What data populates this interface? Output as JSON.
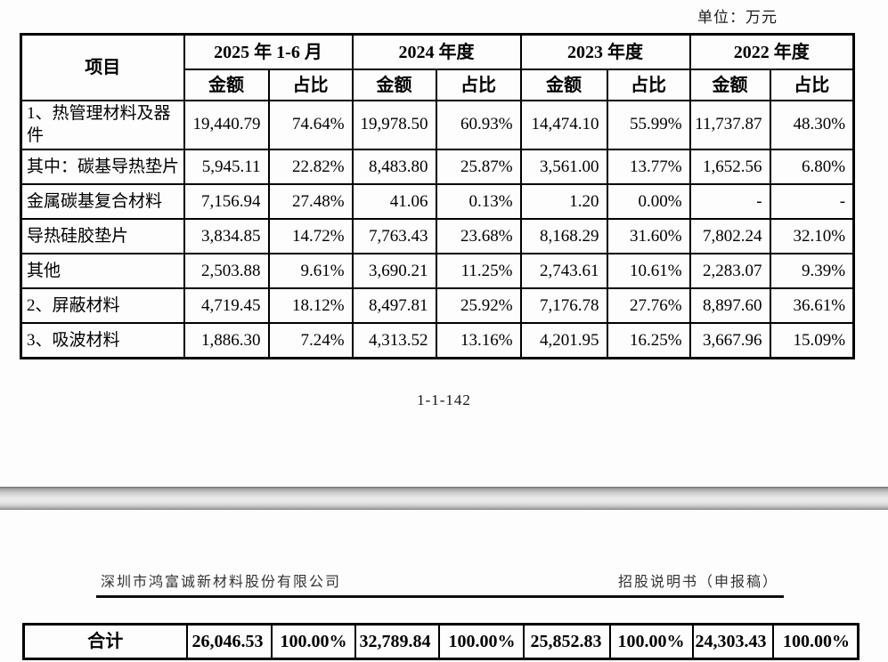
{
  "unit_label": "单位：万元",
  "page_number": "1-1-142",
  "page2_header": {
    "company": "深圳市鸿富诚新材料股份有限公司",
    "doc_type": "招股说明书（申报稿）"
  },
  "table": {
    "item_header": "项目",
    "col_groups": [
      {
        "label": "2025 年 1-6 月"
      },
      {
        "label": "2024 年度"
      },
      {
        "label": "2023 年度"
      },
      {
        "label": "2022 年度"
      }
    ],
    "sub_headers": [
      "金额",
      "占比"
    ],
    "rows": [
      {
        "label": "1、热管理材料及器件",
        "cells": [
          "19,440.79",
          "74.64%",
          "19,978.50",
          "60.93%",
          "14,474.10",
          "55.99%",
          "11,737.87",
          "48.30%"
        ]
      },
      {
        "label": "其中：碳基导热垫片",
        "cells": [
          "5,945.11",
          "22.82%",
          "8,483.80",
          "25.87%",
          "3,561.00",
          "13.77%",
          "1,652.56",
          "6.80%"
        ]
      },
      {
        "label": "金属碳基复合材料",
        "cells": [
          "7,156.94",
          "27.48%",
          "41.06",
          "0.13%",
          "1.20",
          "0.00%",
          "-",
          "-"
        ]
      },
      {
        "label": "导热硅胶垫片",
        "cells": [
          "3,834.85",
          "14.72%",
          "7,763.43",
          "23.68%",
          "8,168.29",
          "31.60%",
          "7,802.24",
          "32.10%"
        ]
      },
      {
        "label": "其他",
        "cells": [
          "2,503.88",
          "9.61%",
          "3,690.21",
          "11.25%",
          "2,743.61",
          "10.61%",
          "2,283.07",
          "9.39%"
        ]
      },
      {
        "label": "2、屏蔽材料",
        "cells": [
          "4,719.45",
          "18.12%",
          "8,497.81",
          "25.92%",
          "7,176.78",
          "27.76%",
          "8,897.60",
          "36.61%"
        ]
      },
      {
        "label": "3、吸波材料",
        "cells": [
          "1,886.30",
          "7.24%",
          "4,313.52",
          "13.16%",
          "4,201.95",
          "16.25%",
          "3,667.96",
          "15.09%"
        ]
      }
    ],
    "total_row": {
      "label": "合计",
      "cells": [
        "26,046.53",
        "100.00%",
        "32,789.84",
        "100.00%",
        "25,852.83",
        "100.00%",
        "24,303.43",
        "100.00%"
      ]
    }
  }
}
